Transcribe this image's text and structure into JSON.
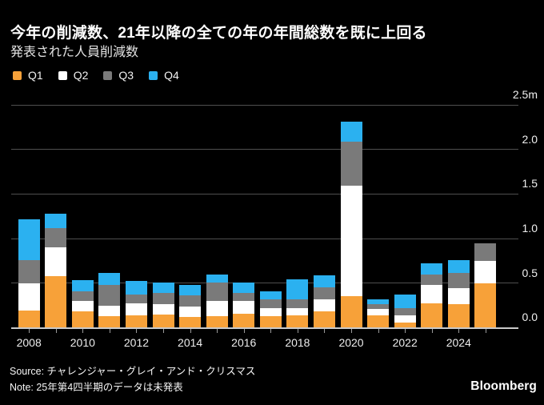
{
  "header": {
    "title": "今年の削減数、21年以降の全ての年の年間総数を既に上回る",
    "subtitle": "発表された人員削減数"
  },
  "legend": [
    {
      "label": "Q1",
      "color": "#F7A139"
    },
    {
      "label": "Q2",
      "color": "#FFFFFF"
    },
    {
      "label": "Q3",
      "color": "#7A7A7A"
    },
    {
      "label": "Q4",
      "color": "#2BB1F0"
    }
  ],
  "chart_data": {
    "type": "bar",
    "stacked": true,
    "title": "今年の削減数、21年以降の全ての年の年間総数を既に上回る",
    "subtitle": "発表された人員削減数",
    "unit": "m",
    "categories": [
      2008,
      2009,
      2010,
      2011,
      2012,
      2013,
      2014,
      2015,
      2016,
      2017,
      2018,
      2019,
      2020,
      2021,
      2022,
      2023,
      2024,
      2025
    ],
    "series": [
      {
        "name": "Q1",
        "color": "#F7A139",
        "values": [
          0.19,
          0.58,
          0.18,
          0.13,
          0.14,
          0.15,
          0.12,
          0.13,
          0.16,
          0.13,
          0.14,
          0.18,
          0.35,
          0.14,
          0.06,
          0.27,
          0.26,
          0.5
        ]
      },
      {
        "name": "Q2",
        "color": "#FFFFFF",
        "values": [
          0.31,
          0.32,
          0.12,
          0.12,
          0.13,
          0.11,
          0.12,
          0.17,
          0.14,
          0.09,
          0.08,
          0.14,
          1.24,
          0.07,
          0.08,
          0.21,
          0.18,
          0.25
        ]
      },
      {
        "name": "Q3",
        "color": "#7A7A7A",
        "values": [
          0.26,
          0.22,
          0.11,
          0.23,
          0.1,
          0.13,
          0.12,
          0.21,
          0.09,
          0.1,
          0.1,
          0.13,
          0.5,
          0.05,
          0.08,
          0.12,
          0.17,
          0.2
        ]
      },
      {
        "name": "Q4",
        "color": "#2BB1F0",
        "values": [
          0.46,
          0.16,
          0.12,
          0.13,
          0.15,
          0.12,
          0.12,
          0.09,
          0.12,
          0.09,
          0.22,
          0.14,
          0.22,
          0.06,
          0.15,
          0.12,
          0.15,
          0.0
        ]
      }
    ],
    "ylim": [
      0,
      2.5
    ],
    "ytick_values": [
      0,
      0.5,
      1.0,
      1.5,
      2.0,
      2.5
    ],
    "ytick_labels": [
      "0.0",
      "0.5",
      "1.0",
      "1.5",
      "2.0",
      "2.5m"
    ],
    "xtick_labels": [
      "2008",
      "2010",
      "2012",
      "2014",
      "2016",
      "2018",
      "2020",
      "2022",
      "2024"
    ],
    "grid": "horizontal",
    "legend_position": "top-left"
  },
  "footer": {
    "source": "Source: チャレンジャー・グレイ・アンド・クリスマス",
    "note": "Note: 25年第4四半期のデータは未発表",
    "brand": "Bloomberg"
  }
}
